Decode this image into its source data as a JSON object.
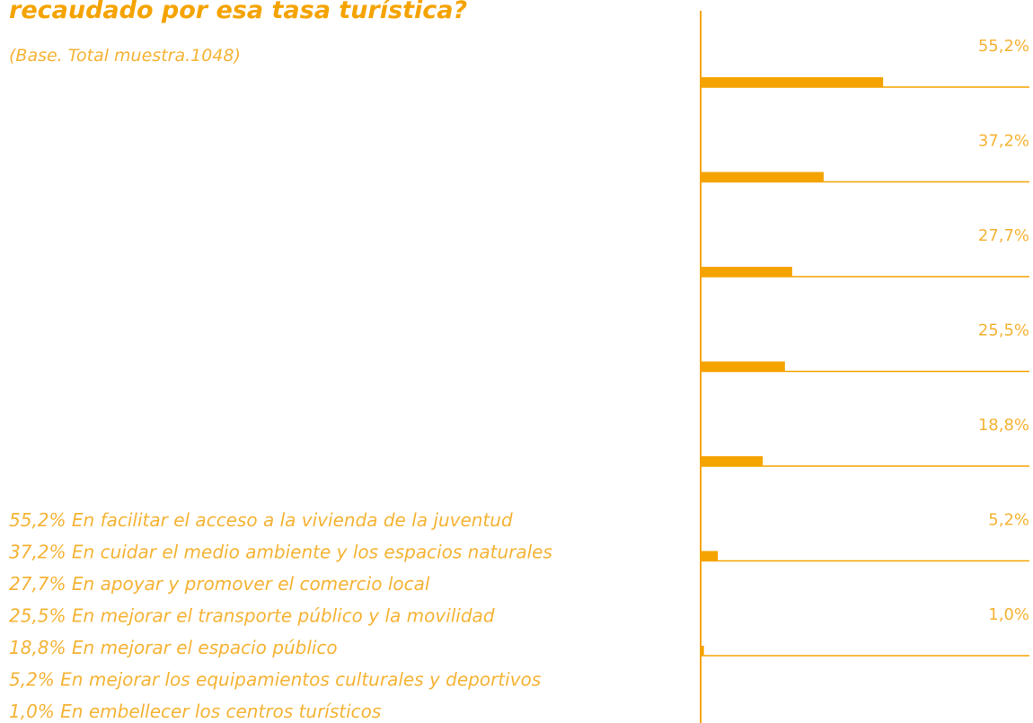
{
  "chart_data": {
    "type": "barh",
    "title": "recaudado por esa tasa turística?",
    "subtitle": "(Base. Total muestra.1048)",
    "categories": [
      "En facilitar el acceso a la vivienda de la juventud",
      "En cuidar el medio ambiente y los espacios naturales",
      "En apoyar y promover el comercio local",
      "En mejorar el transporte público y la movilidad",
      "En mejorar el espacio público",
      "En mejorar los equipamientos culturales y deportivos",
      "En embellecer los centros turísticos"
    ],
    "values": [
      55.2,
      37.2,
      27.7,
      25.5,
      18.8,
      5.2,
      1.0
    ],
    "value_labels": [
      "55,2%",
      "37,2%",
      "27,7%",
      "25,5%",
      "18,8%",
      "5,2%",
      "1,0%"
    ],
    "color": "#f5a300",
    "xlim": [
      0,
      100
    ]
  }
}
